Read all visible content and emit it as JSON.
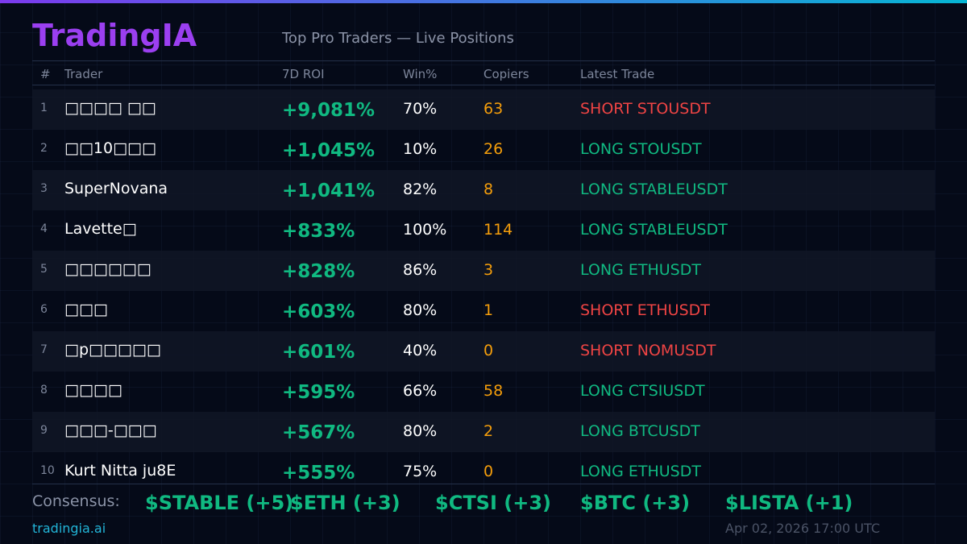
{
  "header": {
    "brand": "TradingIA",
    "subtitle": "Top Pro Traders — Live Positions"
  },
  "table": {
    "columns": [
      "#",
      "Trader",
      "7D ROI",
      "Win%",
      "Copiers",
      "Latest Trade"
    ],
    "rows": [
      [
        "1",
        "□□□□ □□",
        "+9,081%",
        "70%",
        "63",
        "SHORT STOUSDT"
      ],
      [
        "2",
        "□□10□□□",
        "+1,045%",
        "10%",
        "26",
        "LONG STOUSDT"
      ],
      [
        "3",
        "SuperNovana",
        "+1,041%",
        "82%",
        "8",
        "LONG STABLEUSDT"
      ],
      [
        "4",
        "Lavette□",
        "+833%",
        "100%",
        "114",
        "LONG STABLEUSDT"
      ],
      [
        "5",
        "□□□□□□",
        "+828%",
        "86%",
        "3",
        "LONG ETHUSDT"
      ],
      [
        "6",
        "□□□",
        "+603%",
        "80%",
        "1",
        "SHORT ETHUSDT"
      ],
      [
        "7",
        "□p□□□□□",
        "+601%",
        "40%",
        "0",
        "SHORT NOMUSDT"
      ],
      [
        "8",
        "□□□□",
        "+595%",
        "66%",
        "58",
        "LONG CTSIUSDT"
      ],
      [
        "9",
        "□□□-□□□",
        "+567%",
        "80%",
        "2",
        "LONG BTCUSDT"
      ],
      [
        "10",
        "Kurt Nitta ju8E",
        "+555%",
        "75%",
        "0",
        "LONG ETHUSDT"
      ]
    ],
    "trade_colors": [
      "#ef4444",
      "#10b981",
      "#10b981",
      "#10b981",
      "#10b981",
      "#ef4444",
      "#ef4444",
      "#10b981",
      "#10b981",
      "#10b981"
    ]
  },
  "consensus": {
    "label": "Consensus:",
    "tokens": [
      "$STABLE (+5)",
      "$ETH (+3)",
      "$CTSI (+3)",
      "$BTC (+3)",
      "$LISTA (+1)"
    ]
  },
  "footer": {
    "site": "tradingia.ai",
    "timestamp": "Apr 02, 2026 17:00 UTC"
  }
}
